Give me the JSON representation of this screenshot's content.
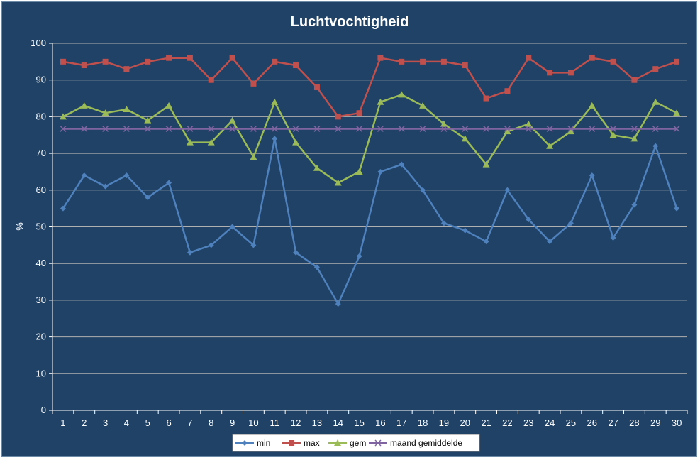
{
  "chart_data": {
    "type": "line",
    "title": "Luchtvochtigheid",
    "xlabel": "",
    "ylabel": "%",
    "ylim": [
      0,
      100
    ],
    "ytick_step": 10,
    "grid": "horizontal",
    "legend_position": "bottom",
    "categories": [
      "1",
      "2",
      "3",
      "4",
      "5",
      "6",
      "7",
      "8",
      "9",
      "10",
      "11",
      "12",
      "13",
      "14",
      "15",
      "16",
      "17",
      "18",
      "19",
      "20",
      "21",
      "22",
      "23",
      "24",
      "25",
      "26",
      "27",
      "28",
      "29",
      "30"
    ],
    "series": [
      {
        "name": "min",
        "color": "#4f81bd",
        "marker": "diamond",
        "values": [
          55,
          64,
          61,
          64,
          58,
          62,
          43,
          45,
          50,
          45,
          74,
          43,
          39,
          29,
          42,
          65,
          67,
          60,
          51,
          49,
          46,
          60,
          52,
          46,
          51,
          64,
          47,
          56,
          72,
          55
        ]
      },
      {
        "name": "max",
        "color": "#c0504d",
        "marker": "square",
        "values": [
          95,
          94,
          95,
          93,
          95,
          96,
          96,
          90,
          96,
          89,
          95,
          94,
          88,
          80,
          81,
          96,
          95,
          95,
          95,
          94,
          85,
          87,
          96,
          92,
          92,
          96,
          95,
          90,
          93,
          95
        ]
      },
      {
        "name": "gem",
        "color": "#9bbb59",
        "marker": "triangle",
        "values": [
          80,
          83,
          81,
          82,
          79,
          83,
          73,
          73,
          79,
          69,
          84,
          73,
          66,
          62,
          65,
          84,
          86,
          83,
          78,
          74,
          67,
          76,
          78,
          72,
          76,
          83,
          75,
          74,
          84,
          81
        ]
      },
      {
        "name": "maand gemiddelde",
        "color": "#8064a2",
        "marker": "x",
        "values": [
          76.7,
          76.7,
          76.7,
          76.7,
          76.7,
          76.7,
          76.7,
          76.7,
          76.7,
          76.7,
          76.7,
          76.7,
          76.7,
          76.7,
          76.7,
          76.7,
          76.7,
          76.7,
          76.7,
          76.7,
          76.7,
          76.7,
          76.7,
          76.7,
          76.7,
          76.7,
          76.7,
          76.7,
          76.7,
          76.7
        ]
      }
    ]
  }
}
